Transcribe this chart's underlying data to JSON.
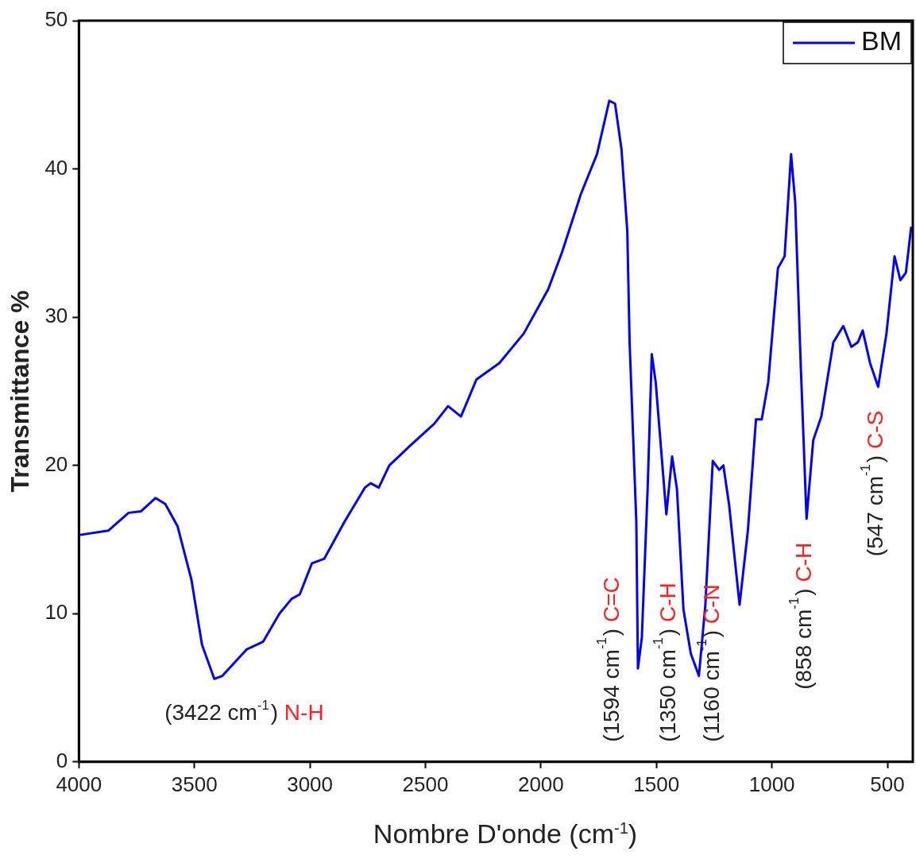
{
  "chart_data": {
    "type": "line",
    "xlabel": "Nombre D'onde (cm$^{-1}$)",
    "ylabel": "Transmittance %",
    "xlim": [
      4000,
      390
    ],
    "xticks": [
      4000,
      3500,
      3000,
      2500,
      2000,
      1500,
      1000,
      500
    ],
    "ylim": [
      0,
      50
    ],
    "yticks": [
      0,
      10,
      20,
      30,
      40,
      50
    ],
    "grid": false,
    "legend": "top right",
    "marker": "none",
    "line_style": "solid",
    "x": [
      4000,
      3873,
      3785,
      3732,
      3668,
      3626,
      3573,
      3513,
      3467,
      3414,
      3379,
      3273,
      3203,
      3132,
      3079,
      3044,
      2991,
      2938,
      2850,
      2762,
      2737,
      2702,
      2656,
      2568,
      2462,
      2402,
      2346,
      2279,
      2180,
      2074,
      1968,
      1908,
      1827,
      1757,
      1704,
      1679,
      1651,
      1626,
      1616,
      1587,
      1580,
      1563,
      1538,
      1520,
      1503,
      1457,
      1432,
      1411,
      1383,
      1351,
      1316,
      1288,
      1256,
      1228,
      1210,
      1185,
      1140,
      1104,
      1069,
      1044,
      1016,
      974,
      945,
      917,
      899,
      875,
      850,
      821,
      786,
      734,
      691,
      656,
      628,
      607,
      575,
      540,
      504,
      469,
      444,
      420,
      397
    ],
    "series": [
      {
        "name": "BM",
        "color": "#0000ff",
        "values": [
          15.3,
          15.6,
          16.8,
          16.9,
          17.8,
          17.4,
          15.9,
          12.3,
          7.9,
          5.6,
          5.8,
          7.6,
          8.1,
          10.0,
          11.0,
          11.3,
          13.4,
          13.7,
          16.2,
          18.5,
          18.8,
          18.5,
          20.0,
          21.3,
          22.8,
          24.0,
          23.3,
          25.8,
          26.9,
          28.9,
          31.9,
          34.4,
          38.3,
          41.0,
          44.6,
          44.4,
          41.3,
          35.8,
          28.3,
          16.2,
          6.3,
          8.4,
          18.4,
          27.5,
          25.6,
          16.7,
          20.6,
          18.4,
          10.3,
          7.3,
          5.8,
          10.6,
          20.3,
          19.7,
          20.0,
          17.3,
          10.6,
          15.6,
          23.1,
          23.1,
          25.6,
          33.3,
          34.1,
          41.0,
          37.7,
          26.7,
          16.4,
          21.7,
          23.3,
          28.3,
          29.4,
          28.0,
          28.3,
          29.1,
          26.9,
          25.3,
          28.9,
          34.1,
          32.5,
          33.0,
          36.1
        ]
      }
    ],
    "annotations": [
      {
        "text": "(3422 cm$^{-1}$) N-H",
        "x": 3422,
        "y": 5.4
      },
      {
        "text": "(1594 cm$^{-1}$) C=C",
        "x": 1594,
        "y": 6.3
      },
      {
        "text": "(1350 cm$^{-1}$) C-H",
        "x": 1350,
        "y": 7.3
      },
      {
        "text": "(1160 cm$^{-1}$) C-N",
        "x": 1160,
        "y": 10.6
      },
      {
        "text": "(858 cm$^{-1}$) C-H",
        "x": 858,
        "y": 16.4
      },
      {
        "text": "(547 cm$^{-1}$) C-S",
        "x": 547,
        "y": 25.3
      }
    ]
  }
}
